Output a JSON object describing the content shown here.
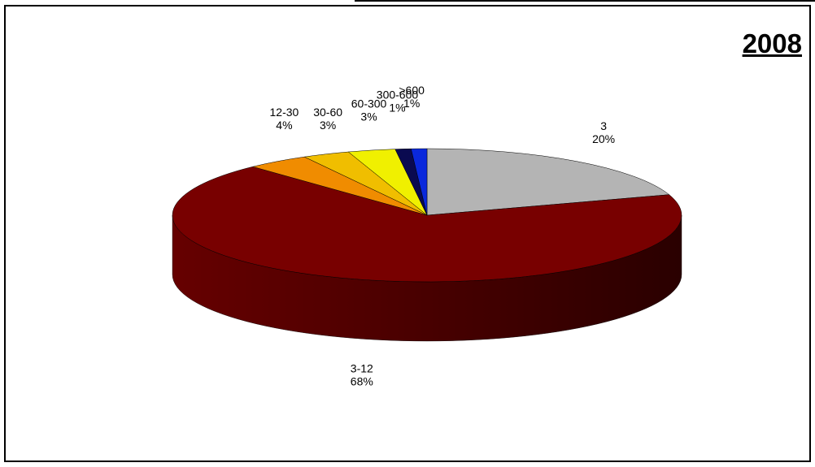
{
  "title": "2008",
  "chart_data": {
    "type": "pie",
    "title": "2008",
    "slices": [
      {
        "label": "3",
        "value": 20,
        "pct_label": "20%",
        "color": "#b4b4b4"
      },
      {
        "label": "3-12",
        "value": 68,
        "pct_label": "68%",
        "color": "#780000"
      },
      {
        "label": "12-30",
        "value": 4,
        "pct_label": "4%",
        "color": "#f08c00"
      },
      {
        "label": "30-60",
        "value": 3,
        "pct_label": "3%",
        "color": "#f0be00"
      },
      {
        "label": "60-300",
        "value": 3,
        "pct_label": "3%",
        "color": "#f0f000"
      },
      {
        "label": "300-600",
        "value": 1,
        "pct_label": "1%",
        "color": "#0a0a50"
      },
      {
        "label": ">600",
        "value": 1,
        "pct_label": "1%",
        "color": "#0a28dc"
      }
    ],
    "style": "3d"
  }
}
